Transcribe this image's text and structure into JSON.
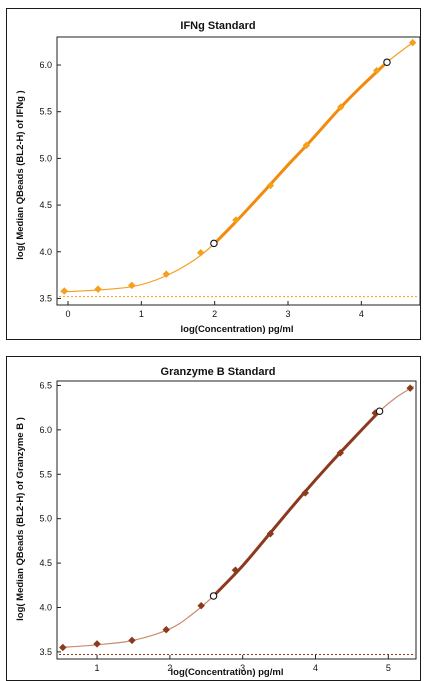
{
  "chart_data": [
    {
      "type": "scatter",
      "title": "IFNg Standard",
      "xlabel": "log(Concentration) pg/ml",
      "ylabel": "log( Median QBeads (BL2-H) of IFNg )",
      "xlim": [
        -0.15,
        4.8
      ],
      "ylim": [
        3.43,
        6.3
      ],
      "xticks": [
        0,
        1,
        2,
        3,
        4
      ],
      "yticks": [
        3.5,
        4.0,
        4.5,
        5.0,
        5.5,
        6.0
      ],
      "color": "#f4a01c",
      "thick_color": "#f28a0c",
      "points": [
        {
          "x": -0.05,
          "y": 3.58
        },
        {
          "x": 0.41,
          "y": 3.6
        },
        {
          "x": 0.87,
          "y": 3.64
        },
        {
          "x": 1.34,
          "y": 3.76
        },
        {
          "x": 1.81,
          "y": 3.99
        },
        {
          "x": 2.29,
          "y": 4.34
        },
        {
          "x": 2.76,
          "y": 4.71
        },
        {
          "x": 3.25,
          "y": 5.14
        },
        {
          "x": 3.72,
          "y": 5.55
        },
        {
          "x": 4.21,
          "y": 5.94
        },
        {
          "x": 4.7,
          "y": 6.24
        }
      ],
      "open_points": [
        {
          "x": 1.99,
          "y": 4.09
        },
        {
          "x": 4.35,
          "y": 6.03
        }
      ],
      "fit_curve": [
        {
          "x": -0.1,
          "y": 3.57
        },
        {
          "x": 0.4,
          "y": 3.59
        },
        {
          "x": 0.9,
          "y": 3.63
        },
        {
          "x": 1.3,
          "y": 3.73
        },
        {
          "x": 1.7,
          "y": 3.9
        },
        {
          "x": 2.0,
          "y": 4.09
        },
        {
          "x": 2.3,
          "y": 4.33
        },
        {
          "x": 2.7,
          "y": 4.67
        },
        {
          "x": 3.0,
          "y": 4.93
        },
        {
          "x": 3.3,
          "y": 5.18
        },
        {
          "x": 3.7,
          "y": 5.53
        },
        {
          "x": 4.0,
          "y": 5.77
        },
        {
          "x": 4.35,
          "y": 6.03
        },
        {
          "x": 4.7,
          "y": 6.24
        }
      ],
      "thick_range": [
        1.99,
        4.35
      ],
      "baseline": 3.52
    },
    {
      "type": "scatter",
      "title": "Granzyme B Standard",
      "xlabel": "log(Concentration) pg/ml",
      "ylabel": "log( Median QBeads (BL2-H) of Granzyme B )",
      "xlim": [
        0.45,
        5.38
      ],
      "ylim": [
        3.42,
        6.55
      ],
      "xticks": [
        1,
        2,
        3,
        4,
        5
      ],
      "yticks": [
        3.5,
        4.0,
        4.5,
        5.0,
        5.5,
        6.0,
        6.5
      ],
      "color": "#8b3a1e",
      "thin_color": "#c98a6a",
      "points": [
        {
          "x": 0.53,
          "y": 3.55
        },
        {
          "x": 1.0,
          "y": 3.59
        },
        {
          "x": 1.48,
          "y": 3.63
        },
        {
          "x": 1.95,
          "y": 3.75
        },
        {
          "x": 2.43,
          "y": 4.02
        },
        {
          "x": 2.9,
          "y": 4.42
        },
        {
          "x": 3.38,
          "y": 4.83
        },
        {
          "x": 3.86,
          "y": 5.29
        },
        {
          "x": 4.34,
          "y": 5.74
        },
        {
          "x": 4.82,
          "y": 6.19
        },
        {
          "x": 5.3,
          "y": 6.47
        }
      ],
      "open_points": [
        {
          "x": 2.6,
          "y": 4.13
        },
        {
          "x": 4.88,
          "y": 6.21
        }
      ],
      "fit_curve": [
        {
          "x": 0.5,
          "y": 3.55
        },
        {
          "x": 1.0,
          "y": 3.58
        },
        {
          "x": 1.5,
          "y": 3.63
        },
        {
          "x": 2.0,
          "y": 3.76
        },
        {
          "x": 2.3,
          "y": 3.92
        },
        {
          "x": 2.6,
          "y": 4.13
        },
        {
          "x": 3.0,
          "y": 4.47
        },
        {
          "x": 3.4,
          "y": 4.86
        },
        {
          "x": 3.8,
          "y": 5.25
        },
        {
          "x": 4.2,
          "y": 5.62
        },
        {
          "x": 4.6,
          "y": 5.97
        },
        {
          "x": 4.88,
          "y": 6.21
        },
        {
          "x": 5.1,
          "y": 6.36
        },
        {
          "x": 5.35,
          "y": 6.49
        }
      ],
      "thick_range": [
        2.6,
        4.88
      ],
      "baseline": 3.47
    }
  ]
}
